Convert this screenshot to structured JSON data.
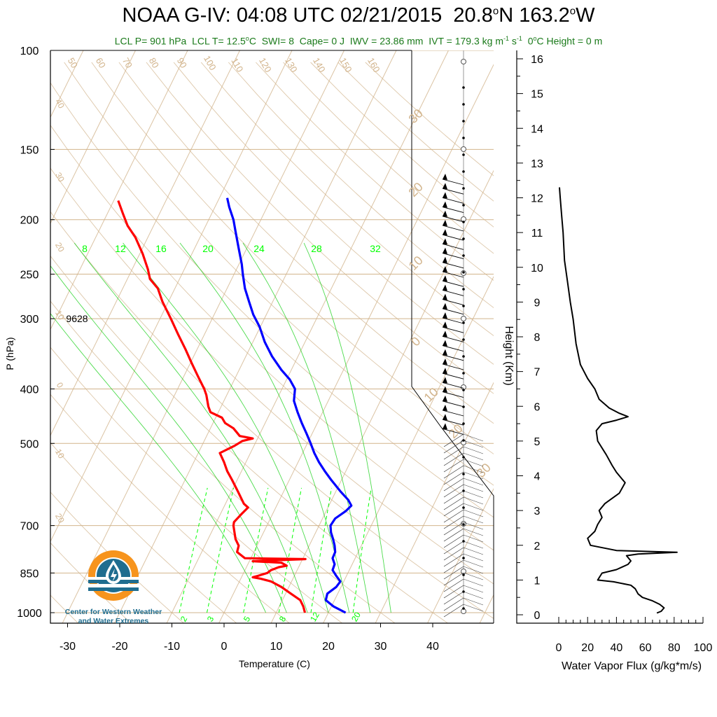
{
  "title": {
    "platform": "NOAA G-IV:",
    "time": "04:08 UTC",
    "date": "02/21/2015",
    "lat": "20.8",
    "lat_hemi": "N",
    "lon": "163.2",
    "lon_hemi": "W",
    "deg": "o"
  },
  "subtitle": {
    "lcl_p": "LCL P= 901 hPa",
    "lcl_t": "LCL T= 12.5",
    "lcl_t_unit": "C",
    "swi": "SWI= 8",
    "cape": "Cape= 0 J",
    "iwv": "IWV = 23.86 mm",
    "ivt": "IVT = 179.3 kg m",
    "ivt_exp1": "-1",
    "ivt_s": " s",
    "ivt_exp2": "-1",
    "zero_height": "0",
    "zero_height_rest": "C Height = 0 m"
  },
  "colors": {
    "temperature": "#ff0000",
    "dewpoint": "#0000ff",
    "isotherm_skewed": "#d2b48c",
    "mixing_ratio": "#00ff00",
    "moist_adiabat": "#00cc00",
    "annotation_green": "#1a7a1a",
    "logo_orange": "#f7941d",
    "logo_blue": "#1f6d8f"
  },
  "chart_data": [
    {
      "type": "line",
      "subtype": "skew-t log-p sounding",
      "xlabel": "Temperature (C)",
      "ylabel": "P (hPa)",
      "xlim": [
        -35,
        52
      ],
      "ylim": [
        1050,
        100
      ],
      "yscale": "log",
      "xticks": [
        "-30",
        "-20",
        "-10",
        "0",
        "10",
        "20",
        "30",
        "40"
      ],
      "xtick_values": [
        -30,
        -20,
        -10,
        0,
        10,
        20,
        30,
        40
      ],
      "yticks": [
        "100",
        "150",
        "200",
        "250",
        "300",
        "400",
        "500",
        "700",
        "850",
        "1000"
      ],
      "ytick_values": [
        100,
        150,
        200,
        250,
        300,
        400,
        500,
        700,
        850,
        1000
      ],
      "annotation": "9628",
      "mixing_ratio_labels_top": [
        "8",
        "12",
        "16",
        "20",
        "24",
        "28",
        "32"
      ],
      "mixing_ratio_labels_bottom": [
        "2",
        "3",
        "5",
        "8",
        "12",
        "20"
      ],
      "isotherm_labels_top": [
        "50",
        "60",
        "70",
        "80",
        "90",
        "100",
        "110",
        "120",
        "130",
        "140",
        "150",
        "160"
      ],
      "isotherm_labels_left": [
        "40",
        "30",
        "20",
        "10",
        "0",
        "10",
        "20"
      ],
      "isotherm_labels_right": [
        "30",
        "20",
        "10",
        "0",
        "10",
        "20",
        "30"
      ],
      "series": [
        {
          "role": "temperature",
          "values": [
            [
              1000,
              15.5
            ],
            [
              975,
              15.2
            ],
            [
              950,
              14.6
            ],
            [
              925,
              12.8
            ],
            [
              900,
              11.0
            ],
            [
              880,
              9.0
            ],
            [
              870,
              7.0
            ],
            [
              865,
              5.5
            ],
            [
              860,
              6.5
            ],
            [
              850,
              8.3
            ],
            [
              840,
              9.0
            ],
            [
              830,
              10.5
            ],
            [
              825,
              12.0
            ],
            [
              815,
              11.0
            ],
            [
              810,
              5.5
            ],
            [
              803,
              15.6
            ],
            [
              800,
              4.0
            ],
            [
              780,
              2.5
            ],
            [
              760,
              2.8
            ],
            [
              740,
              2.2
            ],
            [
              720,
              2.0
            ],
            [
              700,
              1.8
            ],
            [
              690,
              1.9
            ],
            [
              670,
              3.2
            ],
            [
              650,
              4.6
            ],
            [
              640,
              3.8
            ],
            [
              610,
              2.7
            ],
            [
              580,
              1.5
            ],
            [
              560,
              0.6
            ],
            [
              540,
              0.0
            ],
            [
              520,
              -0.8
            ],
            [
              505,
              2.0
            ],
            [
              495,
              3.5
            ],
            [
              490,
              5.5
            ],
            [
              485,
              3.0
            ],
            [
              470,
              1.8
            ],
            [
              460,
              0.2
            ],
            [
              450,
              -0.4
            ],
            [
              440,
              -2.6
            ],
            [
              430,
              -3.0
            ],
            [
              410,
              -3.4
            ],
            [
              400,
              -3.8
            ],
            [
              380,
              -5.0
            ],
            [
              360,
              -6.2
            ],
            [
              340,
              -7.4
            ],
            [
              320,
              -8.8
            ],
            [
              300,
              -10.2
            ],
            [
              280,
              -11.8
            ],
            [
              265,
              -12.7
            ],
            [
              255,
              -14.2
            ],
            [
              245,
              -14.6
            ],
            [
              230,
              -15.6
            ],
            [
              215,
              -17.0
            ],
            [
              205,
              -18.5
            ],
            [
              195,
              -19.4
            ],
            [
              185,
              -20.3
            ]
          ]
        },
        {
          "role": "dewpoint",
          "values": [
            [
              1000,
              23.3
            ],
            [
              975,
              21.0
            ],
            [
              950,
              19.5
            ],
            [
              925,
              19.8
            ],
            [
              900,
              21.5
            ],
            [
              880,
              22.3
            ],
            [
              860,
              21.5
            ],
            [
              840,
              20.8
            ],
            [
              820,
              21.2
            ],
            [
              800,
              20.8
            ],
            [
              780,
              21.3
            ],
            [
              760,
              21.2
            ],
            [
              740,
              20.9
            ],
            [
              720,
              20.5
            ],
            [
              700,
              20.4
            ],
            [
              680,
              21.3
            ],
            [
              660,
              23.3
            ],
            [
              645,
              24.4
            ],
            [
              630,
              23.8
            ],
            [
              610,
              22.4
            ],
            [
              580,
              20.5
            ],
            [
              560,
              19.3
            ],
            [
              540,
              18.2
            ],
            [
              520,
              17.3
            ],
            [
              500,
              16.6
            ],
            [
              480,
              15.8
            ],
            [
              460,
              14.9
            ],
            [
              440,
              14.1
            ],
            [
              420,
              13.4
            ],
            [
              400,
              13.6
            ],
            [
              385,
              12.6
            ],
            [
              370,
              11.0
            ],
            [
              350,
              9.2
            ],
            [
              330,
              7.8
            ],
            [
              310,
              6.8
            ],
            [
              295,
              5.6
            ],
            [
              280,
              4.8
            ],
            [
              265,
              4.0
            ],
            [
              250,
              3.6
            ],
            [
              240,
              3.4
            ],
            [
              225,
              2.8
            ],
            [
              210,
              2.2
            ],
            [
              200,
              1.8
            ],
            [
              190,
              1.0
            ],
            [
              183,
              0.6
            ]
          ]
        }
      ]
    },
    {
      "type": "line",
      "xlabel": "Water Vapor Flux (g/kg*m/s)",
      "ylabel": "Height (Km)",
      "xlim": [
        0,
        100
      ],
      "ylim": [
        -0.3,
        16.5
      ],
      "xticks": [
        "0",
        "20",
        "40",
        "60",
        "80",
        "100"
      ],
      "xtick_values": [
        0,
        20,
        40,
        60,
        80,
        100
      ],
      "yticks": [
        "0",
        "1",
        "2",
        "3",
        "4",
        "5",
        "6",
        "7",
        "8",
        "9",
        "10",
        "11",
        "12",
        "13",
        "14",
        "15",
        "16"
      ],
      "ytick_values": [
        0,
        1,
        2,
        3,
        4,
        5,
        6,
        7,
        8,
        9,
        10,
        11,
        12,
        13,
        14,
        15,
        16
      ],
      "series": [
        {
          "role": "water vapor flux",
          "values": [
            [
              68,
              0.05
            ],
            [
              71,
              0.1
            ],
            [
              73,
              0.2
            ],
            [
              70,
              0.3
            ],
            [
              65,
              0.4
            ],
            [
              58,
              0.5
            ],
            [
              55,
              0.6
            ],
            [
              53,
              0.75
            ],
            [
              50,
              0.85
            ],
            [
              38,
              0.95
            ],
            [
              27,
              1.0
            ],
            [
              30,
              1.2
            ],
            [
              40,
              1.3
            ],
            [
              48,
              1.45
            ],
            [
              50,
              1.55
            ],
            [
              47,
              1.7
            ],
            [
              55,
              1.75
            ],
            [
              82,
              1.8
            ],
            [
              40,
              1.85
            ],
            [
              22,
              2.0
            ],
            [
              20,
              2.2
            ],
            [
              25,
              2.4
            ],
            [
              27,
              2.6
            ],
            [
              30,
              2.8
            ],
            [
              28,
              3.0
            ],
            [
              32,
              3.2
            ],
            [
              42,
              3.5
            ],
            [
              46,
              3.8
            ],
            [
              40,
              4.1
            ],
            [
              37,
              4.3
            ],
            [
              33,
              4.6
            ],
            [
              27,
              5.0
            ],
            [
              26,
              5.3
            ],
            [
              30,
              5.5
            ],
            [
              40,
              5.6
            ],
            [
              48,
              5.7
            ],
            [
              42,
              5.8
            ],
            [
              35,
              5.95
            ],
            [
              28,
              6.2
            ],
            [
              25,
              6.5
            ],
            [
              20,
              6.8
            ],
            [
              15,
              7.2
            ],
            [
              12,
              7.8
            ],
            [
              10,
              8.5
            ],
            [
              8,
              9.0
            ],
            [
              6,
              9.6
            ],
            [
              4,
              10.2
            ],
            [
              3,
              11.0
            ],
            [
              2,
              11.5
            ],
            [
              1,
              12.0
            ],
            [
              0.5,
              12.3
            ]
          ]
        }
      ]
    }
  ],
  "logo": {
    "line1": "Center for Western Weather",
    "line2": "and Water Extremes"
  }
}
